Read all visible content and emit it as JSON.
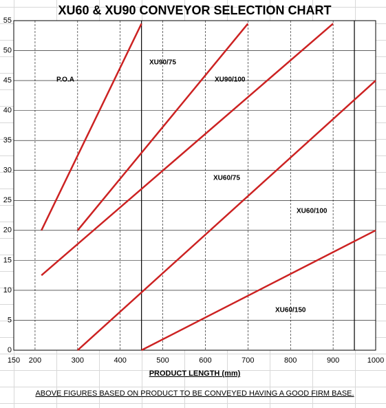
{
  "chart_data": {
    "type": "line",
    "title": "XU60 & XU90 CONVEYOR SELECTION CHART",
    "x_label": "PRODUCT LENGTH (mm)",
    "note": "ABOVE FIGURES BASED ON PRODUCT TO BE CONVEYED HAVING A GOOD FIRM BASE.",
    "xlim": [
      150,
      1000
    ],
    "ylim": [
      0,
      55
    ],
    "xticks": [
      150,
      200,
      300,
      400,
      500,
      600,
      700,
      800,
      900,
      1000
    ],
    "yticks": [
      0,
      5,
      10,
      15,
      20,
      25,
      30,
      35,
      40,
      45,
      50,
      55
    ],
    "grid": true,
    "reference_lines": [
      450,
      950
    ],
    "series": [
      {
        "color": "#cc2222",
        "x": [
          215,
          450
        ],
        "values": [
          20,
          54.5
        ]
      },
      {
        "color": "#cc2222",
        "x": [
          300,
          700
        ],
        "values": [
          20,
          54.5
        ]
      },
      {
        "color": "#cc2222",
        "x": [
          215,
          900
        ],
        "values": [
          12.5,
          54.5
        ]
      },
      {
        "color": "#cc2222",
        "x": [
          300,
          1000
        ],
        "values": [
          0,
          45
        ]
      },
      {
        "color": "#cc2222",
        "x": [
          450,
          1000
        ],
        "values": [
          0,
          20
        ]
      }
    ],
    "annotations": [
      "P.O.A",
      "XU90/75",
      "XU90/100",
      "XU60/75",
      "XU60/100",
      "XU60/150"
    ]
  }
}
